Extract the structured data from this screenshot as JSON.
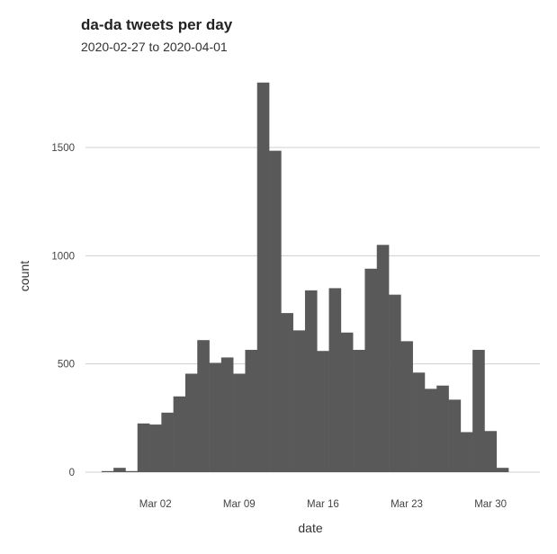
{
  "chart_data": {
    "type": "bar",
    "title": "da-da tweets per day",
    "subtitle": "2020-02-27 to 2020-04-01",
    "xlabel": "date",
    "ylabel": "count",
    "ylim": [
      0,
      1800
    ],
    "y_ticks": [
      0,
      500,
      1000,
      1500
    ],
    "x_ticks": [
      {
        "date": "2020-03-02",
        "label": "Mar 02"
      },
      {
        "date": "2020-03-09",
        "label": "Mar 09"
      },
      {
        "date": "2020-03-16",
        "label": "Mar 16"
      },
      {
        "date": "2020-03-23",
        "label": "Mar 23"
      },
      {
        "date": "2020-03-30",
        "label": "Mar 30"
      }
    ],
    "grid": true,
    "color": "#595959",
    "categories": [
      "2020-02-27",
      "2020-02-28",
      "2020-02-29",
      "2020-03-01",
      "2020-03-02",
      "2020-03-03",
      "2020-03-04",
      "2020-03-05",
      "2020-03-06",
      "2020-03-07",
      "2020-03-08",
      "2020-03-09",
      "2020-03-10",
      "2020-03-11",
      "2020-03-12",
      "2020-03-13",
      "2020-03-14",
      "2020-03-15",
      "2020-03-16",
      "2020-03-17",
      "2020-03-18",
      "2020-03-19",
      "2020-03-20",
      "2020-03-21",
      "2020-03-22",
      "2020-03-23",
      "2020-03-24",
      "2020-03-25",
      "2020-03-26",
      "2020-03-27",
      "2020-03-28",
      "2020-03-29",
      "2020-03-30",
      "2020-03-31",
      "2020-04-01"
    ],
    "values": [
      5,
      20,
      5,
      225,
      220,
      275,
      350,
      455,
      610,
      505,
      530,
      455,
      565,
      1800,
      1485,
      735,
      655,
      840,
      560,
      850,
      645,
      565,
      940,
      1050,
      820,
      605,
      460,
      385,
      400,
      335,
      185,
      565,
      190,
      20,
      0
    ]
  }
}
